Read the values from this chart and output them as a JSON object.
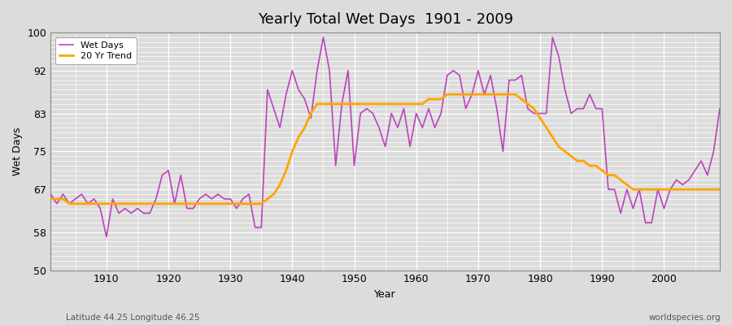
{
  "title": "Yearly Total Wet Days  1901 - 2009",
  "xlabel": "Year",
  "ylabel": "Wet Days",
  "footnote_left": "Latitude 44.25 Longitude 46.25",
  "footnote_right": "worldspecies.org",
  "legend_wet_days": "Wet Days",
  "legend_trend": "20 Yr Trend",
  "wet_days_color": "#bb44bb",
  "trend_color": "#ffa500",
  "ylim": [
    50,
    100
  ],
  "yticks": [
    50,
    58,
    67,
    75,
    83,
    92,
    100
  ],
  "bg_color": "#dcdcdc",
  "years": [
    1901,
    1902,
    1903,
    1904,
    1905,
    1906,
    1907,
    1908,
    1909,
    1910,
    1911,
    1912,
    1913,
    1914,
    1915,
    1916,
    1917,
    1918,
    1919,
    1920,
    1921,
    1922,
    1923,
    1924,
    1925,
    1926,
    1927,
    1928,
    1929,
    1930,
    1931,
    1932,
    1933,
    1934,
    1935,
    1936,
    1937,
    1938,
    1939,
    1940,
    1941,
    1942,
    1943,
    1944,
    1945,
    1946,
    1947,
    1948,
    1949,
    1950,
    1951,
    1952,
    1953,
    1954,
    1955,
    1956,
    1957,
    1958,
    1959,
    1960,
    1961,
    1962,
    1963,
    1964,
    1965,
    1966,
    1967,
    1968,
    1969,
    1970,
    1971,
    1972,
    1973,
    1974,
    1975,
    1976,
    1977,
    1978,
    1979,
    1980,
    1981,
    1982,
    1983,
    1984,
    1985,
    1986,
    1987,
    1988,
    1989,
    1990,
    1991,
    1992,
    1993,
    1994,
    1995,
    1996,
    1997,
    1998,
    1999,
    2000,
    2001,
    2002,
    2003,
    2004,
    2005,
    2006,
    2007,
    2008,
    2009
  ],
  "wet_days": [
    66,
    64,
    66,
    64,
    65,
    66,
    64,
    65,
    63,
    57,
    65,
    62,
    63,
    62,
    63,
    62,
    62,
    65,
    70,
    71,
    64,
    70,
    63,
    63,
    65,
    66,
    65,
    66,
    65,
    65,
    63,
    65,
    66,
    59,
    59,
    88,
    84,
    80,
    87,
    92,
    88,
    86,
    82,
    92,
    99,
    92,
    72,
    85,
    92,
    72,
    83,
    84,
    83,
    80,
    76,
    83,
    80,
    84,
    76,
    83,
    80,
    84,
    80,
    83,
    91,
    92,
    91,
    84,
    87,
    92,
    87,
    91,
    84,
    75,
    90,
    90,
    91,
    84,
    83,
    83,
    83,
    99,
    95,
    88,
    83,
    84,
    84,
    87,
    84,
    84,
    67,
    67,
    62,
    67,
    63,
    67,
    60,
    60,
    67,
    63,
    67,
    69,
    68,
    69,
    71,
    73,
    70,
    75,
    84
  ],
  "trend": [
    65,
    65,
    65,
    64,
    64,
    64,
    64,
    64,
    64,
    64,
    64,
    64,
    64,
    64,
    64,
    64,
    64,
    64,
    64,
    64,
    64,
    64,
    64,
    64,
    64,
    64,
    64,
    64,
    64,
    64,
    64,
    64,
    64,
    64,
    64,
    65,
    66,
    68,
    71,
    75,
    78,
    80,
    83,
    85,
    85,
    85,
    85,
    85,
    85,
    85,
    85,
    85,
    85,
    85,
    85,
    85,
    85,
    85,
    85,
    85,
    85,
    86,
    86,
    86,
    87,
    87,
    87,
    87,
    87,
    87,
    87,
    87,
    87,
    87,
    87,
    87,
    86,
    85,
    84,
    82,
    80,
    78,
    76,
    75,
    74,
    73,
    73,
    72,
    72,
    71,
    70,
    70,
    69,
    68,
    67,
    67,
    67,
    67,
    67,
    67,
    67,
    67,
    67,
    67,
    67,
    67,
    67,
    67,
    67
  ]
}
